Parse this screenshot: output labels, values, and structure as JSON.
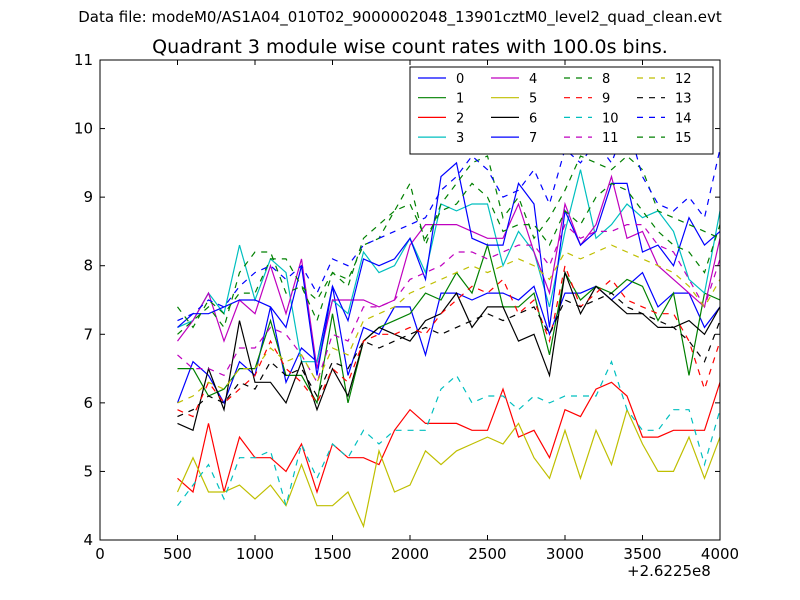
{
  "chart_data": {
    "type": "line",
    "suptitle": "Data file: modeM0/AS1A04_010T02_9000002048_13901cztM0_level2_quad_clean.evt",
    "title": "Quadrant 3 module wise count rates with 100.0s bins.",
    "xlabel": "",
    "ylabel": "",
    "x_offset_label": "+2.6225e8",
    "xlim": [
      0,
      4000
    ],
    "ylim": [
      4,
      11
    ],
    "xticks": [
      0,
      500,
      1000,
      1500,
      2000,
      2500,
      3000,
      3500,
      4000
    ],
    "yticks": [
      4,
      5,
      6,
      7,
      8,
      9,
      10,
      11
    ],
    "grid": false,
    "legend_position": "top-right",
    "legend_columns": 4,
    "x": [
      500,
      600,
      700,
      800,
      900,
      1000,
      1100,
      1200,
      1300,
      1400,
      1500,
      1600,
      1700,
      1800,
      1900,
      2000,
      2100,
      2200,
      2300,
      2400,
      2500,
      2600,
      2700,
      2800,
      2900,
      3000,
      3100,
      3200,
      3300,
      3400,
      3500,
      3600,
      3700,
      3800,
      3900,
      4000
    ],
    "series": [
      {
        "name": "0",
        "color": "#0000ff",
        "style": "solid",
        "values": [
          6.0,
          6.6,
          6.4,
          6.0,
          6.6,
          6.4,
          7.4,
          6.3,
          6.8,
          6.6,
          7.7,
          6.4,
          7.1,
          7.0,
          7.4,
          7.4,
          6.7,
          7.6,
          7.6,
          7.5,
          7.6,
          7.6,
          7.5,
          7.7,
          7.0,
          7.6,
          7.6,
          7.7,
          7.5,
          7.7,
          7.9,
          7.4,
          7.6,
          7.6,
          7.1,
          7.4
        ]
      },
      {
        "name": "1",
        "color": "#008000",
        "style": "solid",
        "values": [
          6.5,
          6.5,
          6.1,
          6.2,
          6.5,
          6.5,
          7.2,
          6.4,
          6.4,
          6.0,
          7.3,
          6.0,
          6.9,
          7.1,
          7.2,
          7.3,
          7.6,
          7.5,
          7.9,
          7.6,
          8.3,
          7.4,
          7.4,
          7.6,
          6.7,
          7.9,
          7.5,
          7.7,
          7.6,
          7.8,
          7.7,
          7.2,
          7.6,
          6.4,
          7.6,
          7.5
        ]
      },
      {
        "name": "2",
        "color": "#ff0000",
        "style": "solid",
        "values": [
          4.9,
          4.7,
          5.7,
          4.7,
          5.5,
          5.2,
          5.2,
          5.0,
          5.4,
          4.7,
          5.4,
          5.2,
          5.2,
          5.1,
          5.6,
          5.9,
          5.7,
          5.7,
          5.7,
          5.6,
          5.6,
          6.2,
          5.5,
          5.6,
          5.2,
          5.9,
          5.8,
          6.2,
          6.3,
          6.1,
          5.5,
          5.5,
          5.6,
          5.6,
          5.6,
          6.3
        ]
      },
      {
        "name": "3",
        "color": "#00bfbf",
        "style": "solid",
        "values": [
          7.1,
          7.2,
          7.6,
          7.3,
          8.3,
          7.5,
          8.1,
          7.9,
          6.6,
          6.6,
          7.5,
          7.3,
          8.2,
          7.9,
          8.0,
          8.4,
          7.9,
          8.9,
          8.8,
          8.9,
          8.9,
          8.0,
          8.5,
          8.2,
          7.4,
          8.5,
          9.4,
          8.4,
          8.6,
          8.9,
          8.7,
          8.8,
          8.5,
          7.8,
          7.6,
          8.8
        ]
      },
      {
        "name": "4",
        "color": "#bf00bf",
        "style": "solid",
        "values": [
          6.9,
          7.2,
          7.6,
          6.9,
          7.5,
          7.3,
          8.0,
          7.3,
          8.1,
          6.5,
          7.5,
          7.5,
          7.5,
          7.4,
          7.5,
          8.3,
          8.6,
          8.6,
          8.6,
          8.5,
          8.4,
          8.4,
          8.9,
          8.2,
          7.6,
          8.9,
          8.3,
          8.6,
          9.3,
          8.4,
          8.5,
          8.0,
          7.8,
          7.6,
          7.4,
          8.4
        ]
      },
      {
        "name": "5",
        "color": "#bfbf00",
        "style": "solid",
        "values": [
          4.7,
          5.2,
          4.7,
          4.7,
          4.8,
          4.6,
          4.8,
          4.5,
          5.1,
          4.5,
          4.5,
          4.7,
          4.2,
          5.3,
          4.7,
          4.8,
          5.3,
          5.1,
          5.3,
          5.4,
          5.5,
          5.4,
          5.7,
          5.2,
          4.9,
          5.6,
          4.9,
          5.6,
          5.1,
          5.9,
          5.4,
          5.0,
          5.0,
          5.5,
          4.9,
          5.5
        ]
      },
      {
        "name": "6",
        "color": "#000000",
        "style": "solid",
        "values": [
          5.7,
          5.6,
          6.5,
          5.9,
          7.2,
          6.3,
          6.3,
          6.0,
          6.6,
          5.9,
          6.5,
          6.1,
          6.9,
          7.1,
          7.0,
          6.9,
          7.2,
          7.3,
          7.6,
          7.1,
          7.4,
          7.4,
          6.9,
          7.0,
          6.4,
          7.9,
          7.3,
          7.7,
          7.5,
          7.3,
          7.3,
          7.1,
          7.1,
          7.2,
          7.0,
          7.4
        ]
      },
      {
        "name": "7",
        "color": "#0000ff",
        "style": "solid",
        "values": [
          7.1,
          7.3,
          7.3,
          7.4,
          7.5,
          7.5,
          7.4,
          7.1,
          8.0,
          6.4,
          7.7,
          7.2,
          8.1,
          8.0,
          8.1,
          8.4,
          7.8,
          9.3,
          9.5,
          8.4,
          8.3,
          8.3,
          9.2,
          8.9,
          7.1,
          8.8,
          8.3,
          8.5,
          9.2,
          9.2,
          8.2,
          8.3,
          8.0,
          8.7,
          8.3,
          8.5
        ]
      },
      {
        "name": "8",
        "color": "#008000",
        "style": "dashed",
        "values": [
          7.4,
          7.1,
          7.5,
          7.3,
          7.6,
          7.6,
          8.1,
          8.1,
          7.7,
          7.5,
          7.9,
          7.8,
          8.3,
          8.4,
          8.8,
          9.2,
          8.3,
          8.9,
          9.2,
          9.5,
          9.6,
          8.7,
          9.0,
          8.4,
          8.7,
          9.1,
          9.6,
          9.5,
          9.4,
          9.6,
          9.4,
          8.8,
          8.7,
          8.6,
          8.5,
          8.4
        ]
      },
      {
        "name": "9",
        "color": "#ff0000",
        "style": "dashed",
        "values": [
          5.9,
          5.8,
          6.3,
          6.0,
          6.2,
          6.4,
          6.9,
          6.5,
          6.3,
          6.0,
          6.5,
          6.3,
          6.9,
          7.0,
          7.0,
          7.1,
          7.0,
          7.3,
          7.5,
          7.7,
          7.6,
          7.8,
          7.3,
          7.5,
          6.9,
          8.0,
          7.4,
          7.6,
          7.8,
          7.5,
          7.4,
          7.3,
          7.3,
          6.9,
          6.2,
          6.9
        ]
      },
      {
        "name": "10",
        "color": "#00bfbf",
        "style": "dashed",
        "values": [
          4.5,
          4.8,
          5.1,
          4.6,
          5.2,
          5.2,
          5.3,
          4.5,
          5.4,
          4.9,
          5.4,
          5.2,
          5.6,
          5.4,
          5.6,
          5.6,
          5.6,
          6.2,
          6.4,
          6.0,
          6.1,
          6.1,
          5.9,
          6.1,
          6.0,
          6.1,
          6.1,
          6.1,
          6.6,
          5.9,
          5.6,
          5.6,
          5.9,
          5.9,
          5.1,
          5.9
        ]
      },
      {
        "name": "11",
        "color": "#bf00bf",
        "style": "dashed",
        "values": [
          6.7,
          6.5,
          6.5,
          6.4,
          6.8,
          6.8,
          7.1,
          7.0,
          6.7,
          6.3,
          7.0,
          6.9,
          7.4,
          7.4,
          7.5,
          7.8,
          7.9,
          8.0,
          8.2,
          8.2,
          8.1,
          8.2,
          8.3,
          8.3,
          8.0,
          8.6,
          8.4,
          8.5,
          8.5,
          8.6,
          8.6,
          8.3,
          8.2,
          7.8,
          7.4,
          8.1
        ]
      },
      {
        "name": "12",
        "color": "#bfbf00",
        "style": "dashed",
        "values": [
          6.0,
          6.1,
          6.3,
          6.2,
          6.5,
          6.5,
          6.8,
          6.6,
          6.7,
          6.3,
          6.8,
          6.7,
          7.2,
          7.3,
          7.4,
          7.6,
          7.7,
          7.8,
          7.9,
          8.0,
          7.9,
          8.0,
          8.1,
          8.0,
          7.8,
          8.2,
          8.1,
          8.2,
          8.3,
          8.2,
          8.1,
          8.0,
          7.9,
          7.7,
          7.4,
          7.8
        ]
      },
      {
        "name": "13",
        "color": "#000000",
        "style": "dashed",
        "values": [
          5.8,
          5.9,
          6.1,
          6.0,
          6.3,
          6.2,
          6.6,
          6.4,
          6.5,
          6.1,
          6.6,
          6.5,
          6.9,
          6.8,
          6.9,
          7.0,
          7.1,
          7.0,
          7.1,
          7.2,
          7.3,
          7.2,
          7.3,
          7.4,
          7.0,
          7.5,
          7.4,
          7.5,
          7.6,
          7.4,
          7.3,
          7.2,
          7.1,
          6.9,
          6.6,
          7.2
        ]
      },
      {
        "name": "14",
        "color": "#0000ff",
        "style": "dashed",
        "values": [
          7.2,
          7.3,
          7.5,
          7.4,
          7.7,
          7.9,
          8.0,
          7.8,
          8.0,
          7.6,
          8.1,
          8.0,
          8.3,
          8.4,
          8.5,
          8.6,
          8.7,
          9.1,
          9.3,
          9.6,
          9.4,
          9.0,
          9.1,
          9.4,
          8.9,
          9.7,
          9.5,
          9.8,
          9.5,
          10.1,
          9.3,
          8.9,
          8.8,
          9.0,
          8.7,
          9.7
        ]
      },
      {
        "name": "15",
        "color": "#008000",
        "style": "dashed",
        "values": [
          7.0,
          7.2,
          7.4,
          7.1,
          7.9,
          8.2,
          8.2,
          7.6,
          7.7,
          7.2,
          7.9,
          7.7,
          8.4,
          8.6,
          8.8,
          8.9,
          8.4,
          8.8,
          8.9,
          9.2,
          9.0,
          8.5,
          8.6,
          8.6,
          8.3,
          8.8,
          8.6,
          9.0,
          9.2,
          9.1,
          8.8,
          8.5,
          8.3,
          8.2,
          7.9,
          8.6
        ]
      }
    ]
  }
}
